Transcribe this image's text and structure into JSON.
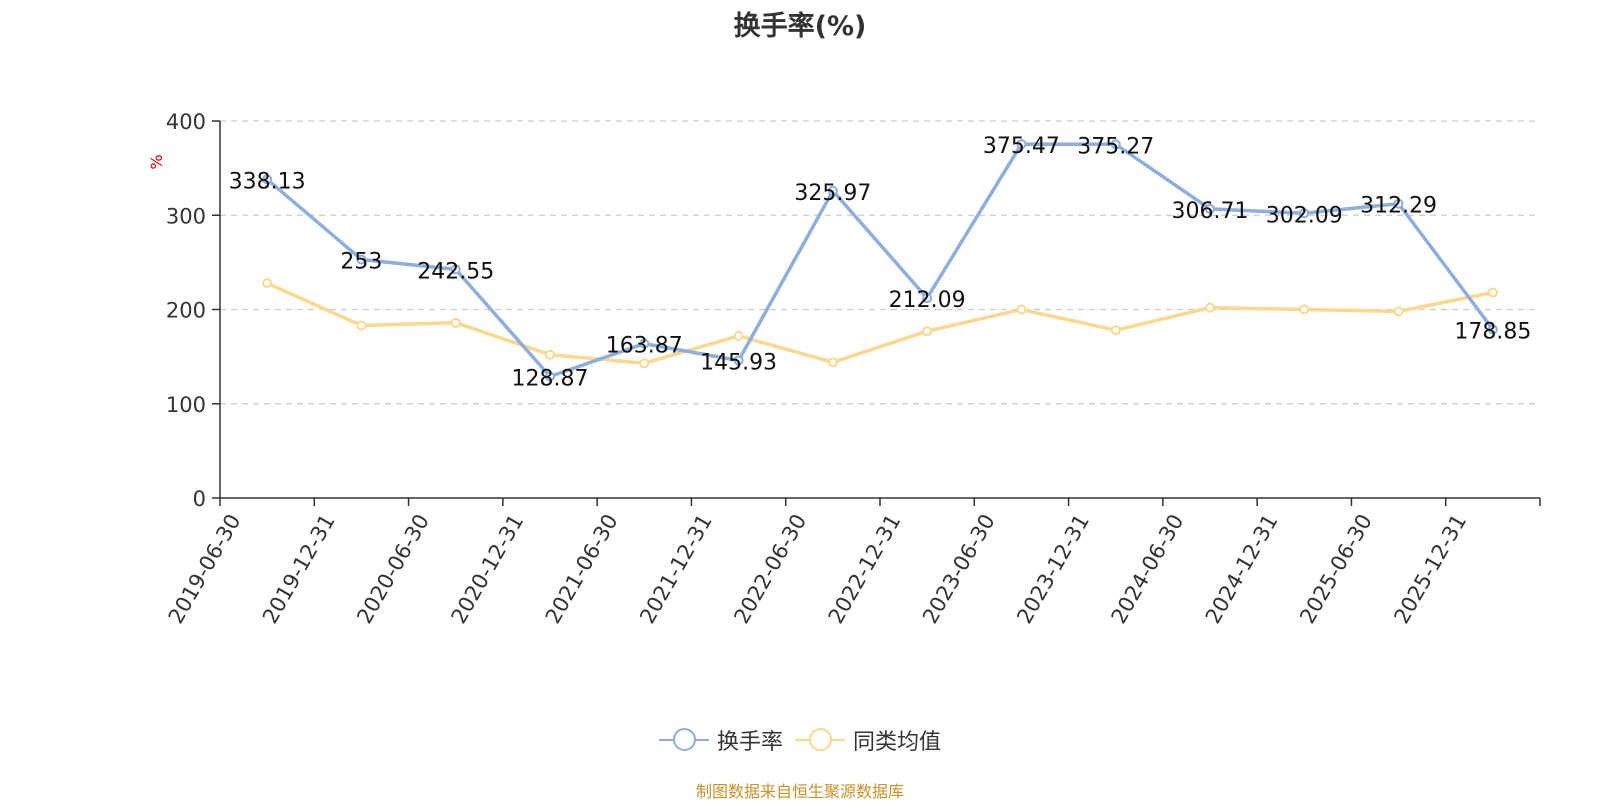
{
  "chart_data": {
    "type": "line",
    "title": "换手率(%)",
    "xlabel": "",
    "ylabel": "%",
    "ylim": [
      0,
      400
    ],
    "yticks": [
      0,
      100,
      200,
      300,
      400
    ],
    "grid": true,
    "legend_position": "bottom",
    "categories": [
      "2019-06-30",
      "2019-12-31",
      "2020-06-30",
      "2020-12-31",
      "2021-06-30",
      "2021-12-31",
      "2022-06-30",
      "2022-12-31",
      "2023-06-30",
      "2023-12-31",
      "2024-06-30",
      "2024-12-31",
      "2025-06-30",
      "2025-12-31"
    ],
    "series": [
      {
        "name": "换手率",
        "color": "#8eaedc",
        "show_labels": true,
        "values": [
          338.13,
          253,
          242.55,
          128.87,
          163.87,
          145.93,
          325.97,
          212.09,
          375.47,
          375.27,
          306.71,
          302.09,
          312.29,
          178.85
        ]
      },
      {
        "name": "同类均值",
        "color": "#fbd88f",
        "show_labels": false,
        "values": [
          228,
          183,
          186,
          152,
          143,
          172,
          144,
          177,
          200,
          178,
          202,
          200,
          198,
          218
        ]
      }
    ],
    "source": "制图数据来自恒生聚源数据库"
  }
}
